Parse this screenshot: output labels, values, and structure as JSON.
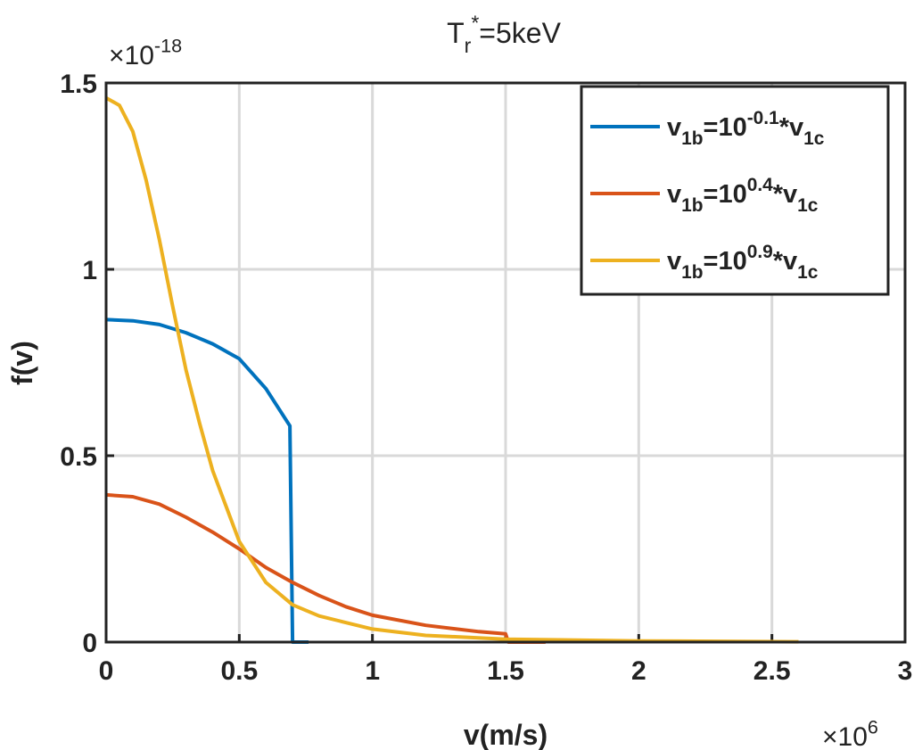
{
  "chart_data": {
    "type": "line",
    "title": [
      {
        "text": "T",
        "pos": "base"
      },
      {
        "text": "r",
        "pos": "sub"
      },
      {
        "text": "*",
        "pos": "sup"
      },
      {
        "text": "=5keV",
        "pos": "base"
      }
    ],
    "xlabel": "v(m/s)",
    "ylabel": "f(v)",
    "x_multiplier": [
      {
        "text": "×10",
        "pos": "base"
      },
      {
        "text": "6",
        "pos": "sup"
      }
    ],
    "y_multiplier": [
      {
        "text": "×10",
        "pos": "base"
      },
      {
        "text": "-18",
        "pos": "sup"
      }
    ],
    "xlim": [
      0,
      3
    ],
    "ylim": [
      0,
      1.5
    ],
    "xticks": [
      0,
      0.5,
      1,
      1.5,
      2,
      2.5,
      3
    ],
    "yticks": [
      0,
      0.5,
      1,
      1.5
    ],
    "grid": true,
    "legend": "upper right",
    "series": [
      {
        "name": [
          {
            "text": "v",
            "pos": "base"
          },
          {
            "text": "1b",
            "pos": "sub"
          },
          {
            "text": "=10",
            "pos": "base"
          },
          {
            "text": "-0.1",
            "pos": "sup"
          },
          {
            "text": "*v",
            "pos": "base"
          },
          {
            "text": "1c",
            "pos": "sub"
          }
        ],
        "color": "#0072bd",
        "x": [
          0,
          0.1,
          0.2,
          0.3,
          0.4,
          0.5,
          0.6,
          0.69,
          0.7,
          0.76
        ],
        "values": [
          0.865,
          0.862,
          0.852,
          0.83,
          0.8,
          0.76,
          0.68,
          0.58,
          0,
          0
        ]
      },
      {
        "name": [
          {
            "text": "v",
            "pos": "base"
          },
          {
            "text": "1b",
            "pos": "sub"
          },
          {
            "text": "=10",
            "pos": "base"
          },
          {
            "text": "0.4",
            "pos": "sup"
          },
          {
            "text": "*v",
            "pos": "base"
          },
          {
            "text": "1c",
            "pos": "sub"
          }
        ],
        "color": "#d95319",
        "x": [
          0,
          0.1,
          0.2,
          0.3,
          0.4,
          0.5,
          0.6,
          0.7,
          0.8,
          0.9,
          1.0,
          1.2,
          1.4,
          1.5,
          1.51,
          1.65
        ],
        "values": [
          0.395,
          0.39,
          0.37,
          0.335,
          0.295,
          0.25,
          0.2,
          0.16,
          0.125,
          0.095,
          0.072,
          0.045,
          0.028,
          0.022,
          0,
          0
        ]
      },
      {
        "name": [
          {
            "text": "v",
            "pos": "base"
          },
          {
            "text": "1b",
            "pos": "sub"
          },
          {
            "text": "=10",
            "pos": "base"
          },
          {
            "text": "0.9",
            "pos": "sup"
          },
          {
            "text": "*v",
            "pos": "base"
          },
          {
            "text": "1c",
            "pos": "sub"
          }
        ],
        "color": "#edb120",
        "x": [
          0,
          0.05,
          0.1,
          0.15,
          0.2,
          0.25,
          0.3,
          0.35,
          0.4,
          0.5,
          0.6,
          0.7,
          0.8,
          1.0,
          1.2,
          1.5,
          2.0,
          2.6
        ],
        "values": [
          1.46,
          1.44,
          1.37,
          1.24,
          1.08,
          0.9,
          0.73,
          0.59,
          0.46,
          0.27,
          0.16,
          0.1,
          0.07,
          0.035,
          0.018,
          0.008,
          0.003,
          0.001
        ]
      }
    ]
  }
}
